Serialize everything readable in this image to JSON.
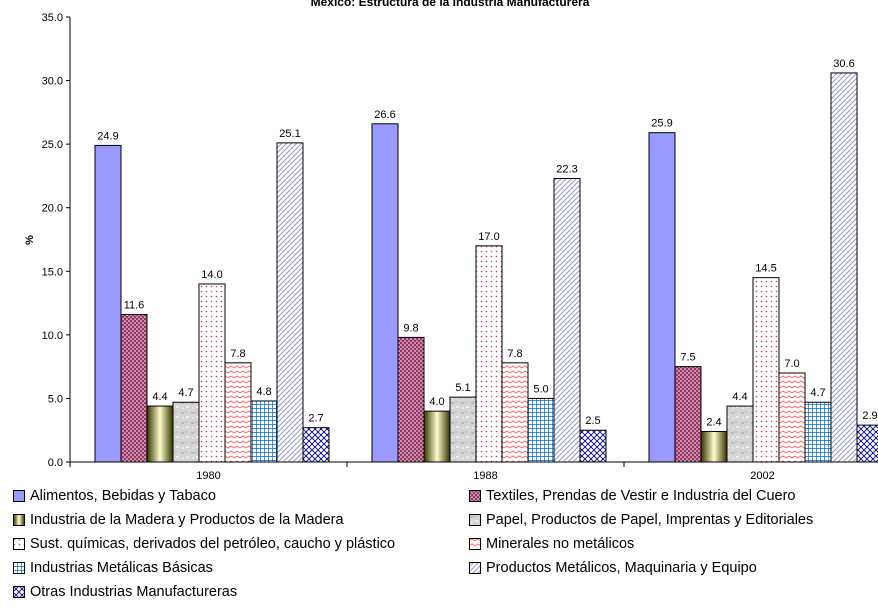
{
  "chart_data": {
    "type": "bar",
    "title": "México: Estructura de la Industria Manufacturera",
    "xlabel": "",
    "ylabel": "%",
    "ylim": [
      0,
      35
    ],
    "yticks": [
      "0.0",
      "5.0",
      "10.0",
      "15.0",
      "20.0",
      "25.0",
      "30.0",
      "35.0"
    ],
    "categories": [
      "1980",
      "1988",
      "2002"
    ],
    "grid": false,
    "legend_position": "bottom",
    "series": [
      {
        "name": "Alimentos, Bebidas y Tabaco",
        "values": [
          24.9,
          26.6,
          25.9
        ],
        "labels": [
          "24.9",
          "26.6",
          "25.9"
        ],
        "color": "#9999ff",
        "pattern": "solid"
      },
      {
        "name": "Textiles, Prendas de Vestir e Industria del Cuero",
        "values": [
          11.6,
          9.8,
          7.5
        ],
        "labels": [
          "11.6",
          "9.8",
          "7.5"
        ],
        "color": "#993366",
        "pattern": "dots"
      },
      {
        "name": "Industria de la Madera y Productos de la Madera",
        "values": [
          4.4,
          4.0,
          2.4
        ],
        "labels": [
          "4.4",
          "4.0",
          "2.4"
        ],
        "color": "#999933",
        "pattern": "gradient"
      },
      {
        "name": "Papel, Productos de Papel, Imprentas y Editoriales",
        "values": [
          4.7,
          5.1,
          4.4
        ],
        "labels": [
          "4.7",
          "5.1",
          "4.4"
        ],
        "color": "#cccccc",
        "pattern": "texture"
      },
      {
        "name": "Sust. químicas, derivados del petróleo,  caucho y plástico",
        "values": [
          14.0,
          17.0,
          14.5
        ],
        "labels": [
          "14.0",
          "17.0",
          "14.5"
        ],
        "color": "#cc3366",
        "pattern": "sparse-dots"
      },
      {
        "name": "Minerales no metálicos",
        "values": [
          7.8,
          7.8,
          7.0
        ],
        "labels": [
          "7.8",
          "7.8",
          "7.0"
        ],
        "color": "#ff8080",
        "pattern": "wave"
      },
      {
        "name": "Industrias Metálicas Básicas",
        "values": [
          4.8,
          5.0,
          4.7
        ],
        "labels": [
          "4.8",
          "5.0",
          "4.7"
        ],
        "color": "#0066cc",
        "pattern": "grid"
      },
      {
        "name": "Productos Metálicos, Maquinaria y Equipo",
        "values": [
          25.1,
          22.3,
          30.6
        ],
        "labels": [
          "25.1",
          "22.3",
          "30.6"
        ],
        "color": "#9999cc",
        "pattern": "diagonal"
      },
      {
        "name": "Otras Industrias Manufactureras",
        "values": [
          2.7,
          2.5,
          2.9
        ],
        "labels": [
          "2.7",
          "2.5",
          "2.9"
        ],
        "color": "#000080",
        "pattern": "crosshatch"
      }
    ]
  }
}
